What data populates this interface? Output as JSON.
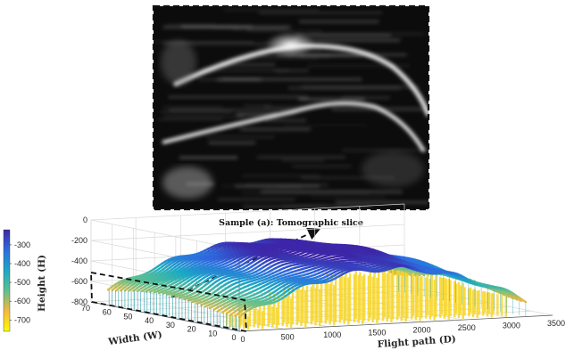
{
  "caption": "Sample (a): Tomographic slice",
  "chart_data": {
    "type": "surface",
    "xlabel": "Flight path (D)",
    "ylabel": "Width (W)",
    "zlabel": "Height (H)",
    "x_ticks": [
      0,
      500,
      1000,
      1500,
      2000,
      2500,
      3000,
      3500
    ],
    "y_ticks": [
      0,
      10,
      20,
      30,
      40,
      50,
      60,
      70
    ],
    "z_ticks": [
      -800,
      -600,
      -400,
      -200,
      0
    ],
    "xlim": [
      0,
      3500
    ],
    "ylim": [
      0,
      70
    ],
    "zlim": [
      -800,
      0
    ],
    "colorbar": {
      "ticks": [
        -700,
        -600,
        -500,
        -400,
        -300
      ],
      "range": [
        -760,
        -220
      ],
      "colors": [
        "#f9fb0e",
        "#f5b93a",
        "#5fc08f",
        "#1aa9c4",
        "#2e6de0",
        "#3d26a8"
      ]
    },
    "grid": true
  }
}
